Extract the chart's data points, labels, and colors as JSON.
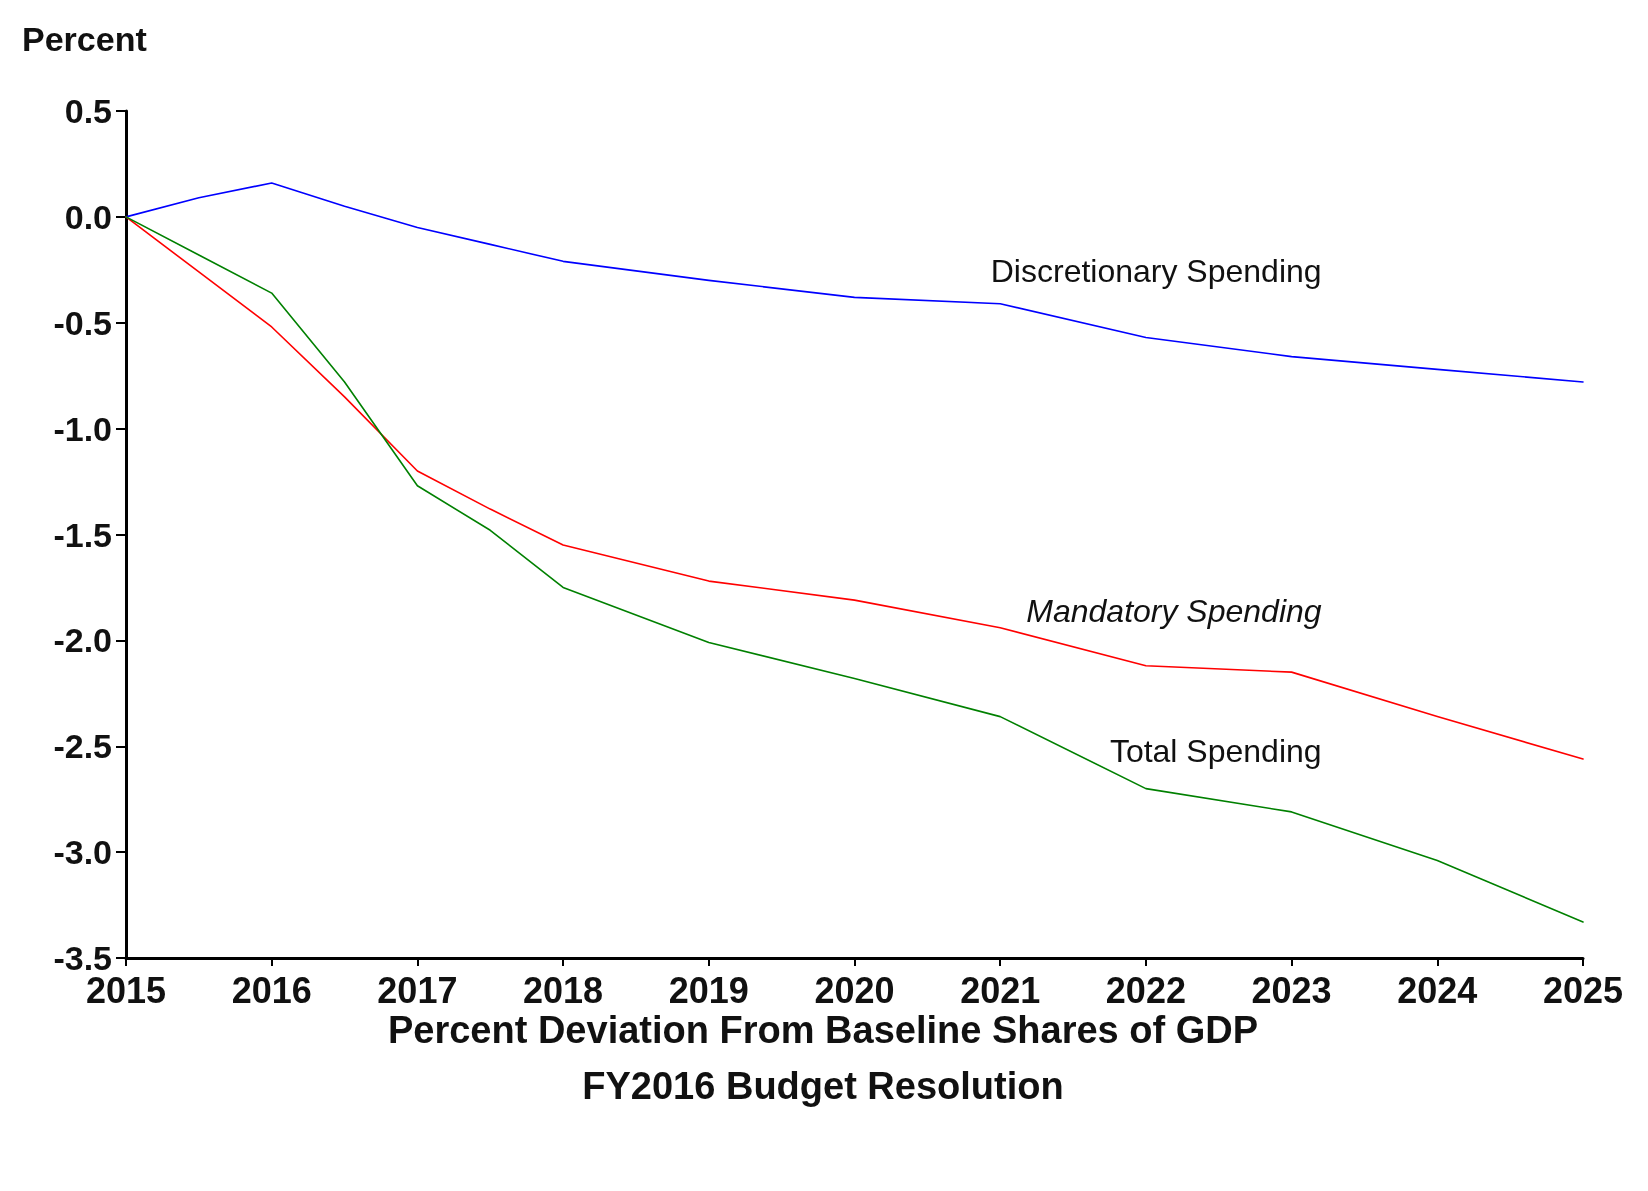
{
  "chart_data": {
    "type": "line",
    "ylabel": "Percent",
    "xlabel": "Percent Deviation From Baseline Shares of GDP\nFY2016 Budget Resolution",
    "xlim": [
      2015,
      2025
    ],
    "xticks": [
      2015,
      2016,
      2017,
      2018,
      2019,
      2020,
      2021,
      2022,
      2023,
      2024,
      2025
    ],
    "ylim": [
      -3.5,
      0.5
    ],
    "yticks": [
      {
        "value": -3.5,
        "label": "-3.5"
      },
      {
        "value": -3,
        "label": "-3.0"
      },
      {
        "value": -2.5,
        "label": "-2.5"
      },
      {
        "value": -2,
        "label": "-2.0"
      },
      {
        "value": -1.5,
        "label": "-1.5"
      },
      {
        "value": -1,
        "label": "-1.0"
      },
      {
        "value": -0.5,
        "label": "-0.5"
      },
      {
        "value": 0,
        "label": "0.0"
      },
      {
        "value": 0.5,
        "label": "0.5"
      }
    ],
    "x": [
      2015,
      2015.5,
      2016,
      2016.5,
      2017,
      2017.5,
      2018,
      2019,
      2020,
      2021,
      2022,
      2023,
      2024,
      2025
    ],
    "series": [
      {
        "name": "Discretionary Spending",
        "color": "#0000ff",
        "values": [
          0,
          0.09,
          0.16,
          0.05,
          -0.05,
          -0.13,
          -0.21,
          -0.3,
          -0.38,
          -0.41,
          -0.57,
          -0.66,
          -0.72,
          -0.78
        ]
      },
      {
        "name": "Mandatory Spending",
        "color": "#ff0000",
        "values": [
          0,
          -0.26,
          -0.52,
          -0.85,
          -1.2,
          -1.38,
          -1.55,
          -1.72,
          -1.81,
          -1.94,
          -2.12,
          -2.15,
          -2.36,
          -2.56
        ]
      },
      {
        "name": "Total Spending",
        "color": "#008000",
        "values": [
          0,
          -0.18,
          -0.36,
          -0.78,
          -1.27,
          -1.48,
          -1.75,
          -2.01,
          -2.18,
          -2.36,
          -2.7,
          -2.81,
          -3.04,
          -3.33
        ]
      }
    ],
    "grid": false,
    "legend": false,
    "marker": "none",
    "line_style": "solid"
  }
}
